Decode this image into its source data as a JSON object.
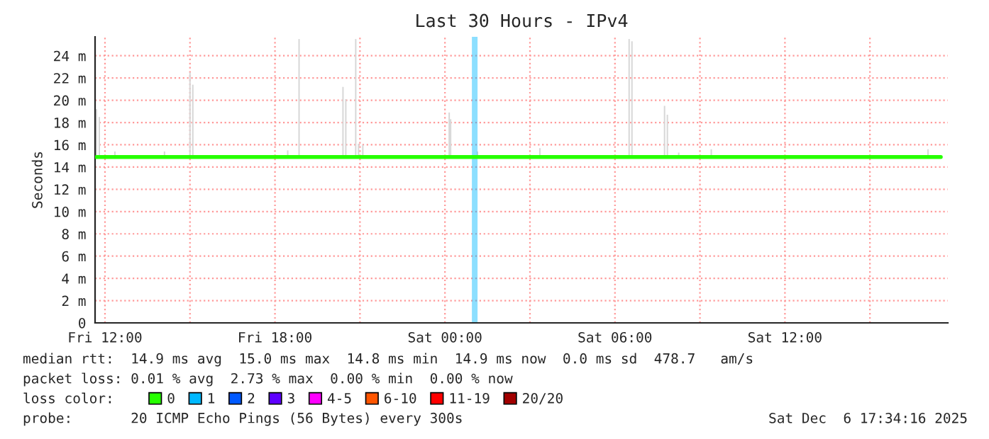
{
  "chart_data": {
    "type": "line",
    "title": "Last 30 Hours - IPv4",
    "ylabel": "Seconds",
    "xlim": [
      "2025-12-05T11:39",
      "2025-12-06T17:45"
    ],
    "xticks": [
      {
        "value": "2025-12-05T12:00",
        "label": "Fri 12:00"
      },
      {
        "value": "2025-12-05T15:00",
        "label": null
      },
      {
        "value": "2025-12-05T18:00",
        "label": "Fri 18:00"
      },
      {
        "value": "2025-12-05T21:00",
        "label": null
      },
      {
        "value": "2025-12-06T00:00",
        "label": "Sat 00:00"
      },
      {
        "value": "2025-12-06T03:00",
        "label": null
      },
      {
        "value": "2025-12-06T06:00",
        "label": "Sat 06:00"
      },
      {
        "value": "2025-12-06T09:00",
        "label": null
      },
      {
        "value": "2025-12-06T12:00",
        "label": "Sat 12:00"
      },
      {
        "value": "2025-12-06T15:00",
        "label": null
      }
    ],
    "ylim": [
      0,
      25.7
    ],
    "yticks": [
      0,
      {
        "value": 2,
        "label": "2 m"
      },
      {
        "value": 4,
        "label": "4 m"
      },
      {
        "value": 6,
        "label": "6 m"
      },
      {
        "value": 8,
        "label": "8 m"
      },
      {
        "value": 10,
        "label": "10 m"
      },
      {
        "value": 12,
        "label": "12 m"
      },
      {
        "value": 14,
        "label": "14 m"
      },
      {
        "value": 16,
        "label": "16 m"
      },
      {
        "value": 18,
        "label": "18 m"
      },
      {
        "value": 20,
        "label": "20 m"
      },
      {
        "value": 22,
        "label": "22 m"
      },
      {
        "value": 24,
        "label": "24 m"
      }
    ],
    "grid": true,
    "legend": "bottom",
    "legend_title": "loss color:",
    "series": [
      {
        "type": "bar",
        "color": "#d7d7d7",
        "x": [
          "2025-12-05T11:42",
          "2025-12-05T11:48",
          "2025-12-05T12:21",
          "2025-12-05T14:06",
          "2025-12-05T15:00",
          "2025-12-05T15:06",
          "2025-12-05T18:27",
          "2025-12-05T18:51",
          "2025-12-05T20:24",
          "2025-12-05T20:30",
          "2025-12-05T20:51",
          "2025-12-05T20:57",
          "2025-12-05T21:06",
          "2025-12-06T00:09",
          "2025-12-06T00:12",
          "2025-12-06T01:09",
          "2025-12-06T03:21",
          "2025-12-06T06:30",
          "2025-12-06T06:36",
          "2025-12-06T07:45",
          "2025-12-06T07:51",
          "2025-12-06T08:15",
          "2025-12-06T09:24",
          "2025-12-06T17:03"
        ],
        "base": [
          14.9,
          14.9,
          14.9,
          14.9,
          14.9,
          14.9,
          14.9,
          14.9,
          14.9,
          14.9,
          14.9,
          14.9,
          14.9,
          14.9,
          14.9,
          14.9,
          14.9,
          14.9,
          14.9,
          14.9,
          14.9,
          14.9,
          14.9,
          14.9
        ],
        "values": [
          4.3,
          3.6,
          0.5,
          0.5,
          7.6,
          6.5,
          0.6,
          10.6,
          6.3,
          5.2,
          10.6,
          1.2,
          1.1,
          4.0,
          3.4,
          0.5,
          0.8,
          10.6,
          10.4,
          4.6,
          3.8,
          0.4,
          0.7,
          0.7
        ]
      },
      {
        "name": "0",
        "color": "#26ff00",
        "x": [
          "2025-12-05T11:42",
          "2025-12-05T14:00",
          "2025-12-05T16:00",
          "2025-12-05T18:00",
          "2025-12-05T20:00",
          "2025-12-05T21:00",
          "2025-12-05T22:00",
          "2025-12-06T00:00",
          "2025-12-06T02:00",
          "2025-12-06T04:00",
          "2025-12-06T06:00",
          "2025-12-06T08:00",
          "2025-12-06T10:00",
          "2025-12-06T12:00",
          "2025-12-06T14:00",
          "2025-12-06T16:00",
          "2025-12-06T17:30"
        ],
        "values": [
          14.9,
          14.9,
          14.9,
          14.9,
          14.9,
          14.9,
          14.9,
          14.9,
          14.9,
          14.9,
          14.9,
          14.9,
          14.9,
          14.9,
          14.9,
          14.9,
          14.9
        ]
      },
      {
        "type": "bar",
        "name": "1",
        "color": "#00b8ff",
        "x": [
          "2025-12-06T01:03"
        ],
        "values": [
          25.7
        ]
      },
      {
        "type": "bar",
        "name": "2",
        "color": "#0059ff"
      },
      {
        "type": "bar",
        "name": "3",
        "color": "#5e00ff"
      },
      {
        "type": "bar",
        "name": "4-5",
        "color": "#ff00ff"
      },
      {
        "type": "bar",
        "name": "6-10",
        "color": "#ff5500"
      },
      {
        "type": "bar",
        "name": "11-19",
        "color": "#ff0000"
      },
      {
        "type": "bar",
        "name": "20/20",
        "color": "#a10000"
      }
    ],
    "annotations": [
      "median rtt:  14.9 ms avg  15.0 ms max  14.8 ms min  14.9 ms now  0.0 ms sd  478.7   am/s",
      "packet loss: 0.01 % avg  2.73 % max  0.00 % min  0.00 % now",
      "probe:       20 ICMP Echo Pings (56 Bytes) every 300s",
      "Sat Dec  6 17:34:16 2025"
    ]
  }
}
